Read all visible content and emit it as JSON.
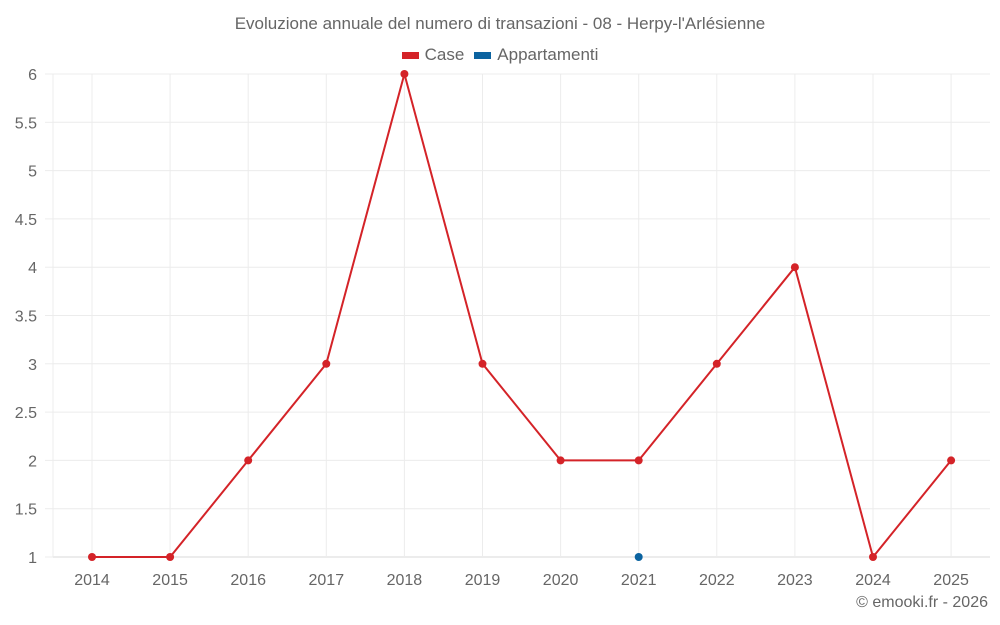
{
  "chart_data": {
    "type": "line",
    "title": "Evoluzione annuale del numero di transazioni - 08 - Herpy-l'Arlésienne",
    "xlabel": "",
    "ylabel": "",
    "categories": [
      "2014",
      "2015",
      "2016",
      "2017",
      "2018",
      "2019",
      "2020",
      "2021",
      "2022",
      "2023",
      "2024",
      "2025"
    ],
    "series": [
      {
        "name": "Case",
        "color": "#d42328",
        "values": [
          1,
          1,
          2,
          3,
          6,
          3,
          2,
          2,
          3,
          4,
          1,
          2
        ]
      },
      {
        "name": "Appartamenti",
        "color": "#0b63a0",
        "values": [
          null,
          null,
          null,
          null,
          null,
          null,
          null,
          1,
          null,
          null,
          null,
          null
        ]
      }
    ],
    "ylim": [
      1,
      6
    ],
    "yticks": [
      "1",
      "1.5",
      "2",
      "2.5",
      "3",
      "3.5",
      "4",
      "4.5",
      "5",
      "5.5",
      "6"
    ],
    "grid": true,
    "legend_position": "top"
  },
  "header": {
    "title": "Evoluzione annuale del numero di transazioni - 08 - Herpy-l'Arlésienne"
  },
  "legend": {
    "items": [
      {
        "label": "Case",
        "color": "#d42328"
      },
      {
        "label": "Appartamenti",
        "color": "#0b63a0"
      }
    ]
  },
  "footer": {
    "credit": "© emooki.fr - 2026"
  }
}
